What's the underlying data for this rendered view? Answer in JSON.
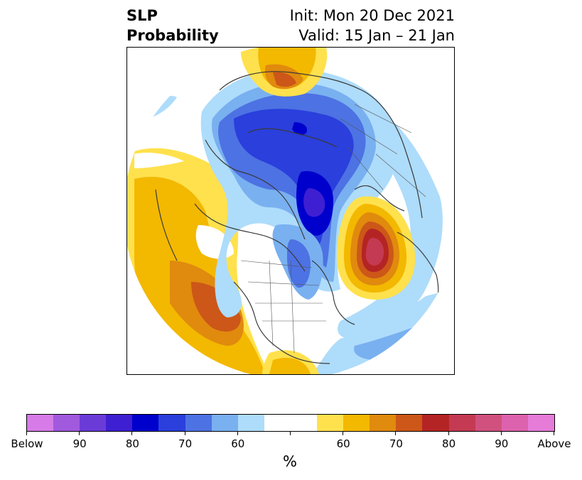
{
  "title": {
    "left_line1": "SLP",
    "left_line2": "Probability",
    "right_line1": "Init: Mon 20 Dec 2021",
    "right_line2": "Valid: 15 Jan – 21 Jan"
  },
  "colorbar": {
    "unit": "%",
    "segments": [
      {
        "color": "#d67be8"
      },
      {
        "color": "#a15ade"
      },
      {
        "color": "#6b3bd8"
      },
      {
        "color": "#3f1fd2"
      },
      {
        "color": "#0000cd"
      },
      {
        "color": "#2a3fdc"
      },
      {
        "color": "#4d72e3"
      },
      {
        "color": "#79b0f0"
      },
      {
        "color": "#aedcfb"
      },
      {
        "color": "#ffffff"
      },
      {
        "color": "#ffffff"
      },
      {
        "color": "#ffe14d"
      },
      {
        "color": "#f3b800"
      },
      {
        "color": "#e08a0e"
      },
      {
        "color": "#cc5718"
      },
      {
        "color": "#b52424"
      },
      {
        "color": "#c43a52"
      },
      {
        "color": "#d0517e"
      },
      {
        "color": "#dd62ad"
      },
      {
        "color": "#e67bd8"
      }
    ],
    "labels": [
      "Below",
      "90",
      "80",
      "70",
      "60",
      "60",
      "70",
      "80",
      "90",
      "Above"
    ]
  },
  "map": {
    "projection": "north-polar-stereographic",
    "fields": "Sea-level pressure anomaly probability (below normal: blues/purples, above normal: yellows/reds)"
  }
}
